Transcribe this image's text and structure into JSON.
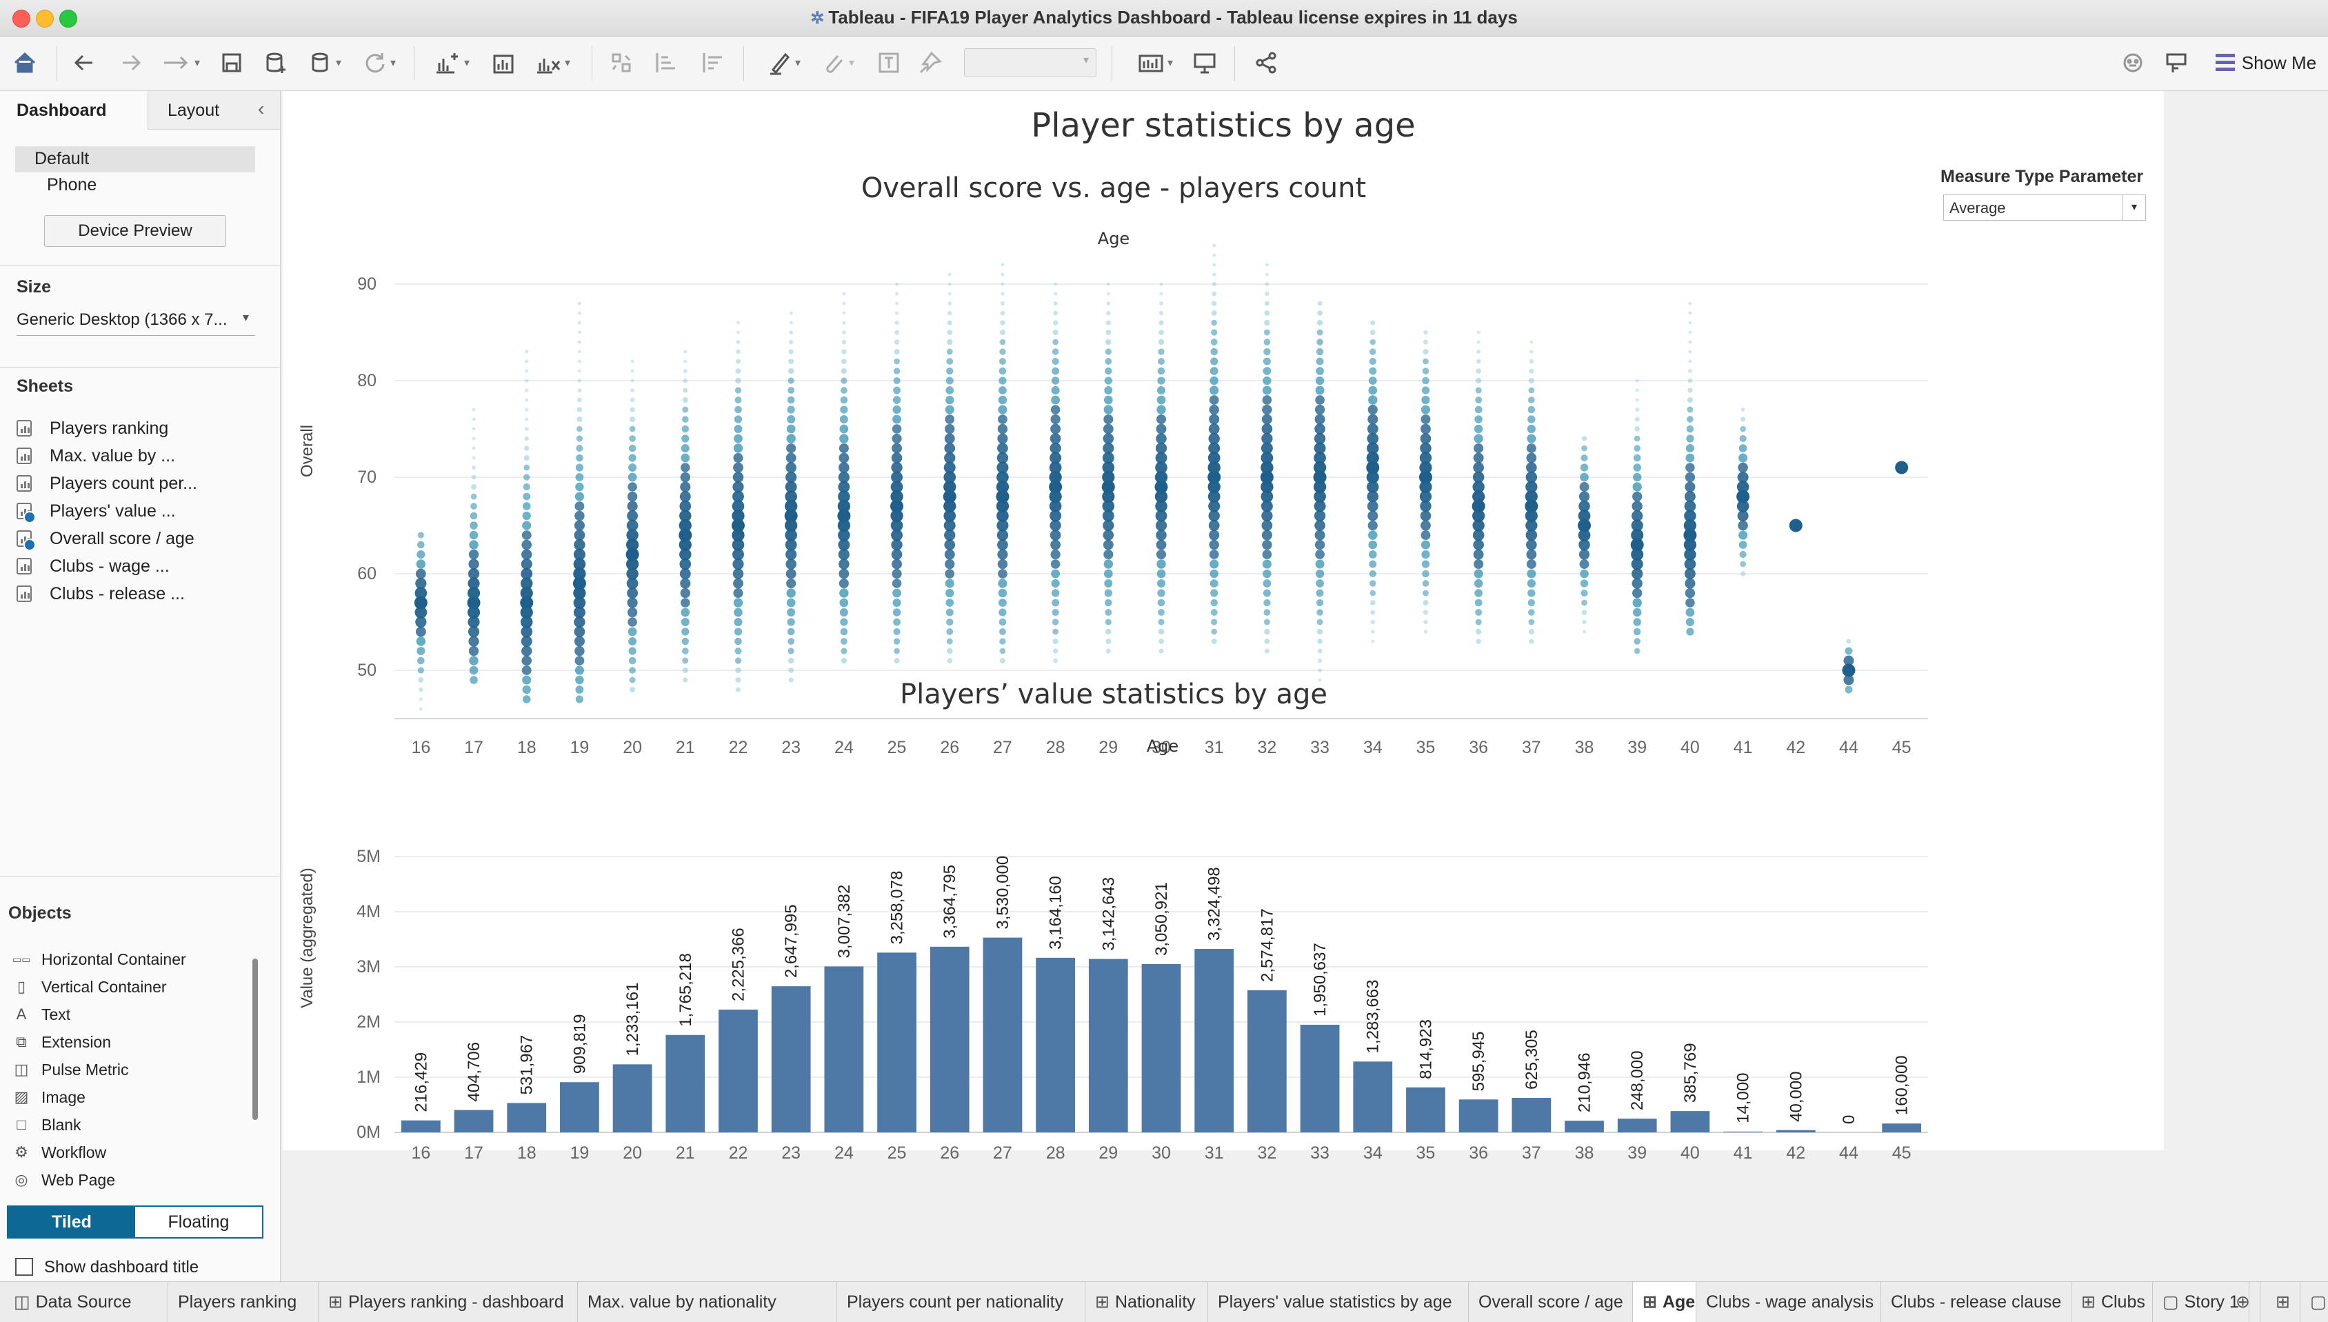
{
  "window": {
    "title": "Tableau - FIFA19 Player Analytics Dashboard  - Tableau license expires in 11 days"
  },
  "toolbar": {
    "show_me_label": "Show Me"
  },
  "left_panel": {
    "tabs": [
      "Dashboard",
      "Layout"
    ],
    "device_default": "Default",
    "device_phone": "Phone",
    "device_preview_button": "Device Preview",
    "size_header": "Size",
    "size_value": "Generic Desktop (1366 x 7...",
    "sheets_header": "Sheets",
    "sheets": [
      "Players ranking",
      "Max. value by ...",
      "Players count per...",
      "Players' value ...",
      "Overall score / age",
      "Clubs - wage ...",
      "Clubs - release ..."
    ],
    "objects_header": "Objects",
    "objects": [
      {
        "label": "Horizontal Container",
        "icon": "horizontal-container-icon"
      },
      {
        "label": "Vertical Container",
        "icon": "vertical-container-icon"
      },
      {
        "label": "Text",
        "icon": "text-icon"
      },
      {
        "label": "Extension",
        "icon": "extension-icon"
      },
      {
        "label": "Pulse Metric",
        "icon": "pulse-metric-icon"
      },
      {
        "label": "Image",
        "icon": "image-icon"
      },
      {
        "label": "Blank",
        "icon": "blank-icon"
      },
      {
        "label": "Workflow",
        "icon": "workflow-icon"
      },
      {
        "label": "Web Page",
        "icon": "web-page-icon"
      }
    ],
    "tiled_label": "Tiled",
    "floating_label": "Floating",
    "show_title_label": "Show dashboard title"
  },
  "dashboard": {
    "title": "Player statistics by age",
    "parameter_label": "Measure Type Parameter",
    "parameter_value": "Average"
  },
  "chart_data": [
    {
      "type": "scatter",
      "title": "Overall score vs. age - players count",
      "xlabel": "Age",
      "ylabel": "Overall",
      "categories": [
        "16",
        "17",
        "18",
        "19",
        "20",
        "21",
        "22",
        "23",
        "24",
        "25",
        "26",
        "27",
        "28",
        "29",
        "30",
        "31",
        "32",
        "33",
        "34",
        "35",
        "36",
        "37",
        "38",
        "39",
        "40",
        "41",
        "42",
        "44",
        "45"
      ],
      "y_ticks": [
        50,
        60,
        70,
        80,
        90
      ],
      "ylim": [
        45,
        95
      ],
      "overall_range": [
        [
          46,
          64
        ],
        [
          49,
          77
        ],
        [
          47,
          83
        ],
        [
          47,
          88
        ],
        [
          48,
          82
        ],
        [
          49,
          83
        ],
        [
          48,
          86
        ],
        [
          49,
          87
        ],
        [
          51,
          89
        ],
        [
          51,
          90
        ],
        [
          51,
          91
        ],
        [
          51,
          92
        ],
        [
          51,
          90
        ],
        [
          52,
          90
        ],
        [
          52,
          90
        ],
        [
          53,
          94
        ],
        [
          52,
          92
        ],
        [
          48,
          88
        ],
        [
          53,
          86
        ],
        [
          54,
          85
        ],
        [
          53,
          85
        ],
        [
          53,
          84
        ],
        [
          54,
          74
        ],
        [
          52,
          80
        ],
        [
          54,
          88
        ],
        [
          60,
          77
        ],
        [
          65,
          65
        ],
        [
          48,
          53
        ],
        [
          71,
          71
        ]
      ],
      "overall_peak": [
        57,
        57,
        57,
        59,
        62,
        64,
        65,
        66,
        66,
        67,
        68,
        68,
        69,
        69,
        69,
        70,
        70,
        70,
        71,
        70,
        67,
        67,
        65,
        63,
        64,
        68,
        65,
        50,
        71
      ],
      "color": "#2b7ea1"
    },
    {
      "type": "bar",
      "title": "Players’ value statistics by age",
      "xlabel": "Age",
      "ylabel": "Value (aggregated)",
      "categories": [
        "16",
        "17",
        "18",
        "19",
        "20",
        "21",
        "22",
        "23",
        "24",
        "25",
        "26",
        "27",
        "28",
        "29",
        "30",
        "31",
        "32",
        "33",
        "34",
        "35",
        "36",
        "37",
        "38",
        "39",
        "40",
        "41",
        "42",
        "44",
        "45"
      ],
      "values": [
        216429,
        404706,
        531967,
        909819,
        1233161,
        1765218,
        2225366,
        2647995,
        3007382,
        3258078,
        3364795,
        3530000,
        3164160,
        3142643,
        3050921,
        3324498,
        2574817,
        1950637,
        1283663,
        814923,
        595945,
        625305,
        210946,
        248000,
        385769,
        14000,
        40000,
        0,
        160000
      ],
      "labels": [
        "216,429",
        "404,706",
        "531,967",
        "909,819",
        "1,233,161",
        "1,765,218",
        "2,225,366",
        "2,647,995",
        "3,007,382",
        "3,258,078",
        "3,364,795",
        "3,530,000",
        "3,164,160",
        "3,142,643",
        "3,050,921",
        "3,324,498",
        "2,574,817",
        "1,950,637",
        "1,283,663",
        "814,923",
        "595,945",
        "625,305",
        "210,946",
        "248,000",
        "385,769",
        "14,000",
        "40,000",
        "0",
        "160,000"
      ],
      "y_ticks": [
        "0M",
        "1M",
        "2M",
        "3M",
        "4M",
        "5M"
      ],
      "ylim": [
        0,
        5000000
      ],
      "color": "#4e79a7"
    }
  ],
  "bottom_tabs": [
    {
      "label": "Data Source",
      "icon": "database-icon"
    },
    {
      "label": "Players ranking"
    },
    {
      "label": "Players ranking - dashboard",
      "icon": "dashboard-icon"
    },
    {
      "label": "Max. value by nationality"
    },
    {
      "label": "Players count per nationality"
    },
    {
      "label": "Nationality",
      "icon": "dashboard-icon"
    },
    {
      "label": "Players' value statistics by age"
    },
    {
      "label": "Overall score / age"
    },
    {
      "label": "Age",
      "icon": "dashboard-icon"
    },
    {
      "label": "Clubs - wage analysis"
    },
    {
      "label": "Clubs - release clause"
    },
    {
      "label": "Clubs",
      "icon": "dashboard-icon"
    },
    {
      "label": "Story 1",
      "icon": "story-icon"
    }
  ]
}
